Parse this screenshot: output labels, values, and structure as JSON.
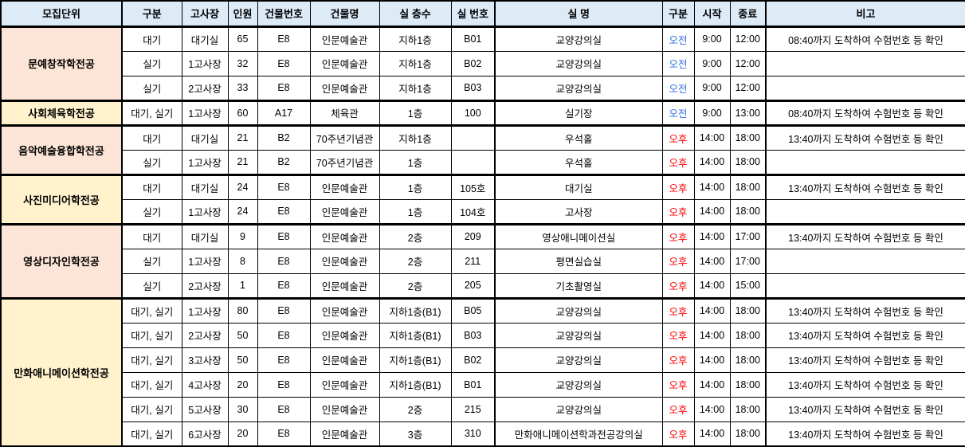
{
  "colors": {
    "header_bg": "#DDEBF7",
    "group_fill_peach": "#FCE4D6",
    "group_fill_yellow": "#FFF2CC",
    "am_text": "#2E6FE0",
    "pm_text": "#FF0000",
    "grid_line": "#000000"
  },
  "table": {
    "headers": [
      "모집단위",
      "구분",
      "고사장",
      "인원",
      "건물번호",
      "건물명",
      "실 층수",
      "실 번호",
      "실 명",
      "구분",
      "시작",
      "종료",
      "비고"
    ],
    "groups": [
      {
        "name": "문예창작학전공",
        "bg": "a",
        "rows": [
          {
            "category": "대기",
            "exam_room": "대기실",
            "count": "65",
            "building_no": "E8",
            "building_name": "인문예술관",
            "floor": "지하1층",
            "room_no": "B01",
            "room_name": "교양강의실",
            "session": "오전",
            "session_type": "am",
            "start_time": "9:00",
            "end_time": "12:00",
            "note": "08:40까지 도착하여 수험번호 등 확인"
          },
          {
            "category": "실기",
            "exam_room": "1고사장",
            "count": "32",
            "building_no": "E8",
            "building_name": "인문예술관",
            "floor": "지하1층",
            "room_no": "B02",
            "room_name": "교양강의실",
            "session": "오전",
            "session_type": "am",
            "start_time": "9:00",
            "end_time": "12:00",
            "note": ""
          },
          {
            "category": "실기",
            "exam_room": "2고사장",
            "count": "33",
            "building_no": "E8",
            "building_name": "인문예술관",
            "floor": "지하1층",
            "room_no": "B03",
            "room_name": "교양강의실",
            "session": "오전",
            "session_type": "am",
            "start_time": "9:00",
            "end_time": "12:00",
            "note": ""
          }
        ]
      },
      {
        "name": "사회체육학전공",
        "bg": "b",
        "rows": [
          {
            "category": "대기, 실기",
            "exam_room": "1고사장",
            "count": "60",
            "building_no": "A17",
            "building_name": "체육관",
            "floor": "1층",
            "room_no": "100",
            "room_name": "실기장",
            "session": "오전",
            "session_type": "am",
            "start_time": "9:00",
            "end_time": "13:00",
            "note": "08:40까지 도착하여 수험번호 등 확인"
          }
        ]
      },
      {
        "name": "음악예술융합학전공",
        "bg": "a",
        "rows": [
          {
            "category": "대기",
            "exam_room": "대기실",
            "count": "21",
            "building_no": "B2",
            "building_name": "70주년기념관",
            "floor": "지하1층",
            "room_no": "",
            "room_name": "우석홀",
            "session": "오후",
            "session_type": "pm",
            "start_time": "14:00",
            "end_time": "18:00",
            "note": "13:40까지 도착하여 수험번호 등 확인"
          },
          {
            "category": "실기",
            "exam_room": "1고사장",
            "count": "21",
            "building_no": "B2",
            "building_name": "70주년기념관",
            "floor": "1층",
            "room_no": "",
            "room_name": "우석홀",
            "session": "오후",
            "session_type": "pm",
            "start_time": "14:00",
            "end_time": "18:00",
            "note": ""
          }
        ]
      },
      {
        "name": "사진미디어학전공",
        "bg": "b",
        "rows": [
          {
            "category": "대기",
            "exam_room": "대기실",
            "count": "24",
            "building_no": "E8",
            "building_name": "인문예술관",
            "floor": "1층",
            "room_no": "105호",
            "room_name": "대기실",
            "session": "오후",
            "session_type": "pm",
            "start_time": "14:00",
            "end_time": "18:00",
            "note": "13:40까지 도착하여 수험번호 등 확인"
          },
          {
            "category": "실기",
            "exam_room": "1고사장",
            "count": "24",
            "building_no": "E8",
            "building_name": "인문예술관",
            "floor": "1층",
            "room_no": "104호",
            "room_name": "고사장",
            "session": "오후",
            "session_type": "pm",
            "start_time": "14:00",
            "end_time": "18:00",
            "note": ""
          }
        ]
      },
      {
        "name": "영상디자인학전공",
        "bg": "a",
        "rows": [
          {
            "category": "대기",
            "exam_room": "대기실",
            "count": "9",
            "building_no": "E8",
            "building_name": "인문예술관",
            "floor": "2층",
            "room_no": "209",
            "room_name": "영상애니메이션실",
            "session": "오후",
            "session_type": "pm",
            "start_time": "14:00",
            "end_time": "17:00",
            "note": "13:40까지 도착하여 수험번호 등 확인"
          },
          {
            "category": "실기",
            "exam_room": "1고사장",
            "count": "8",
            "building_no": "E8",
            "building_name": "인문예술관",
            "floor": "2층",
            "room_no": "211",
            "room_name": "평면실습실",
            "session": "오후",
            "session_type": "pm",
            "start_time": "14:00",
            "end_time": "17:00",
            "note": ""
          },
          {
            "category": "실기",
            "exam_room": "2고사장",
            "count": "1",
            "building_no": "E8",
            "building_name": "인문예술관",
            "floor": "2층",
            "room_no": "205",
            "room_name": "기초촬영실",
            "session": "오후",
            "session_type": "pm",
            "start_time": "14:00",
            "end_time": "15:00",
            "note": ""
          }
        ]
      },
      {
        "name": "만화애니메이션학전공",
        "bg": "b",
        "rows": [
          {
            "category": "대기, 실기",
            "exam_room": "1고사장",
            "count": "80",
            "building_no": "E8",
            "building_name": "인문예술관",
            "floor": "지하1층(B1)",
            "room_no": "B05",
            "room_name": "교양강의실",
            "session": "오후",
            "session_type": "pm",
            "start_time": "14:00",
            "end_time": "18:00",
            "note": "13:40까지 도착하여 수험번호 등 확인"
          },
          {
            "category": "대기, 실기",
            "exam_room": "2고사장",
            "count": "50",
            "building_no": "E8",
            "building_name": "인문예술관",
            "floor": "지하1층(B1)",
            "room_no": "B03",
            "room_name": "교양강의실",
            "session": "오후",
            "session_type": "pm",
            "start_time": "14:00",
            "end_time": "18:00",
            "note": "13:40까지 도착하여 수험번호 등 확인"
          },
          {
            "category": "대기, 실기",
            "exam_room": "3고사장",
            "count": "50",
            "building_no": "E8",
            "building_name": "인문예술관",
            "floor": "지하1층(B1)",
            "room_no": "B02",
            "room_name": "교양강의실",
            "session": "오후",
            "session_type": "pm",
            "start_time": "14:00",
            "end_time": "18:00",
            "note": "13:40까지 도착하여 수험번호 등 확인"
          },
          {
            "category": "대기, 실기",
            "exam_room": "4고사장",
            "count": "20",
            "building_no": "E8",
            "building_name": "인문예술관",
            "floor": "지하1층(B1)",
            "room_no": "B01",
            "room_name": "교양강의실",
            "session": "오후",
            "session_type": "pm",
            "start_time": "14:00",
            "end_time": "18:00",
            "note": "13:40까지 도착하여 수험번호 등 확인"
          },
          {
            "category": "대기, 실기",
            "exam_room": "5고사장",
            "count": "30",
            "building_no": "E8",
            "building_name": "인문예술관",
            "floor": "2층",
            "room_no": "215",
            "room_name": "교양강의실",
            "session": "오후",
            "session_type": "pm",
            "start_time": "14:00",
            "end_time": "18:00",
            "note": "13:40까지 도착하여 수험번호 등 확인"
          },
          {
            "category": "대기, 실기",
            "exam_room": "6고사장",
            "count": "20",
            "building_no": "E8",
            "building_name": "인문예술관",
            "floor": "3층",
            "room_no": "310",
            "room_name": "만화애니메이션학과전공강의실",
            "session": "오후",
            "session_type": "pm",
            "start_time": "14:00",
            "end_time": "18:00",
            "note": "13:40까지 도착하여 수험번호 등 확인"
          }
        ]
      }
    ]
  }
}
